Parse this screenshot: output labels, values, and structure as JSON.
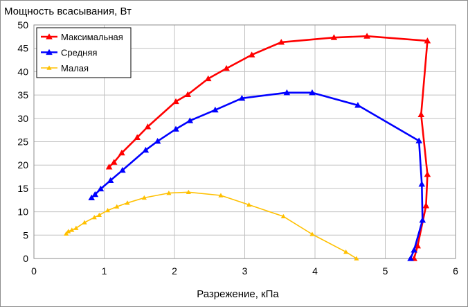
{
  "chart_data": {
    "type": "line",
    "ylabel": "Мощность  всасывания, Вт",
    "xlabel": "Разрежение,  кПа",
    "xlim": [
      0,
      6
    ],
    "ylim": [
      0,
      50
    ],
    "xticks": [
      "0",
      "1",
      "2",
      "3",
      "4",
      "5",
      "6"
    ],
    "yticks": [
      "0",
      "5",
      "10",
      "15",
      "20",
      "25",
      "30",
      "35",
      "40",
      "45",
      "50"
    ],
    "grid": true,
    "legend_position": "top-left",
    "series": [
      {
        "name": "Максимальная",
        "color": "#ff0000",
        "points": [
          [
            1.07,
            19.6
          ],
          [
            1.14,
            20.6
          ],
          [
            1.25,
            22.6
          ],
          [
            1.47,
            25.9
          ],
          [
            1.62,
            28.2
          ],
          [
            2.02,
            33.6
          ],
          [
            2.19,
            35.1
          ],
          [
            2.48,
            38.5
          ],
          [
            2.74,
            40.7
          ],
          [
            3.1,
            43.6
          ],
          [
            3.52,
            46.3
          ],
          [
            4.27,
            47.3
          ],
          [
            4.74,
            47.6
          ],
          [
            5.6,
            46.6
          ],
          [
            5.51,
            30.8
          ],
          [
            5.6,
            18.0
          ],
          [
            5.58,
            11.3
          ],
          [
            5.46,
            2.7
          ],
          [
            5.41,
            0.0
          ]
        ]
      },
      {
        "name": "Средняя",
        "color": "#0000ff",
        "points": [
          [
            0.82,
            13.0
          ],
          [
            0.87,
            13.7
          ],
          [
            0.95,
            14.9
          ],
          [
            1.09,
            16.7
          ],
          [
            1.26,
            18.9
          ],
          [
            1.59,
            23.2
          ],
          [
            1.76,
            25.1
          ],
          [
            2.02,
            27.7
          ],
          [
            2.22,
            29.5
          ],
          [
            2.58,
            31.8
          ],
          [
            2.96,
            34.3
          ],
          [
            3.6,
            35.5
          ],
          [
            3.96,
            35.5
          ],
          [
            4.61,
            32.8
          ],
          [
            5.48,
            25.2
          ],
          [
            5.52,
            15.9
          ],
          [
            5.53,
            8.2
          ],
          [
            5.41,
            1.8
          ],
          [
            5.36,
            0.0
          ]
        ]
      },
      {
        "name": "Малая",
        "color": "#ffc000",
        "points": [
          [
            0.46,
            5.3
          ],
          [
            0.49,
            5.8
          ],
          [
            0.54,
            6.1
          ],
          [
            0.6,
            6.5
          ],
          [
            0.72,
            7.7
          ],
          [
            0.86,
            8.8
          ],
          [
            0.93,
            9.3
          ],
          [
            1.05,
            10.3
          ],
          [
            1.18,
            11.1
          ],
          [
            1.33,
            11.9
          ],
          [
            1.57,
            13.0
          ],
          [
            1.92,
            14.0
          ],
          [
            2.2,
            14.2
          ],
          [
            2.66,
            13.5
          ],
          [
            3.06,
            11.5
          ],
          [
            3.55,
            9.0
          ],
          [
            3.96,
            5.2
          ],
          [
            4.44,
            1.4
          ],
          [
            4.59,
            0.0
          ]
        ]
      }
    ]
  }
}
